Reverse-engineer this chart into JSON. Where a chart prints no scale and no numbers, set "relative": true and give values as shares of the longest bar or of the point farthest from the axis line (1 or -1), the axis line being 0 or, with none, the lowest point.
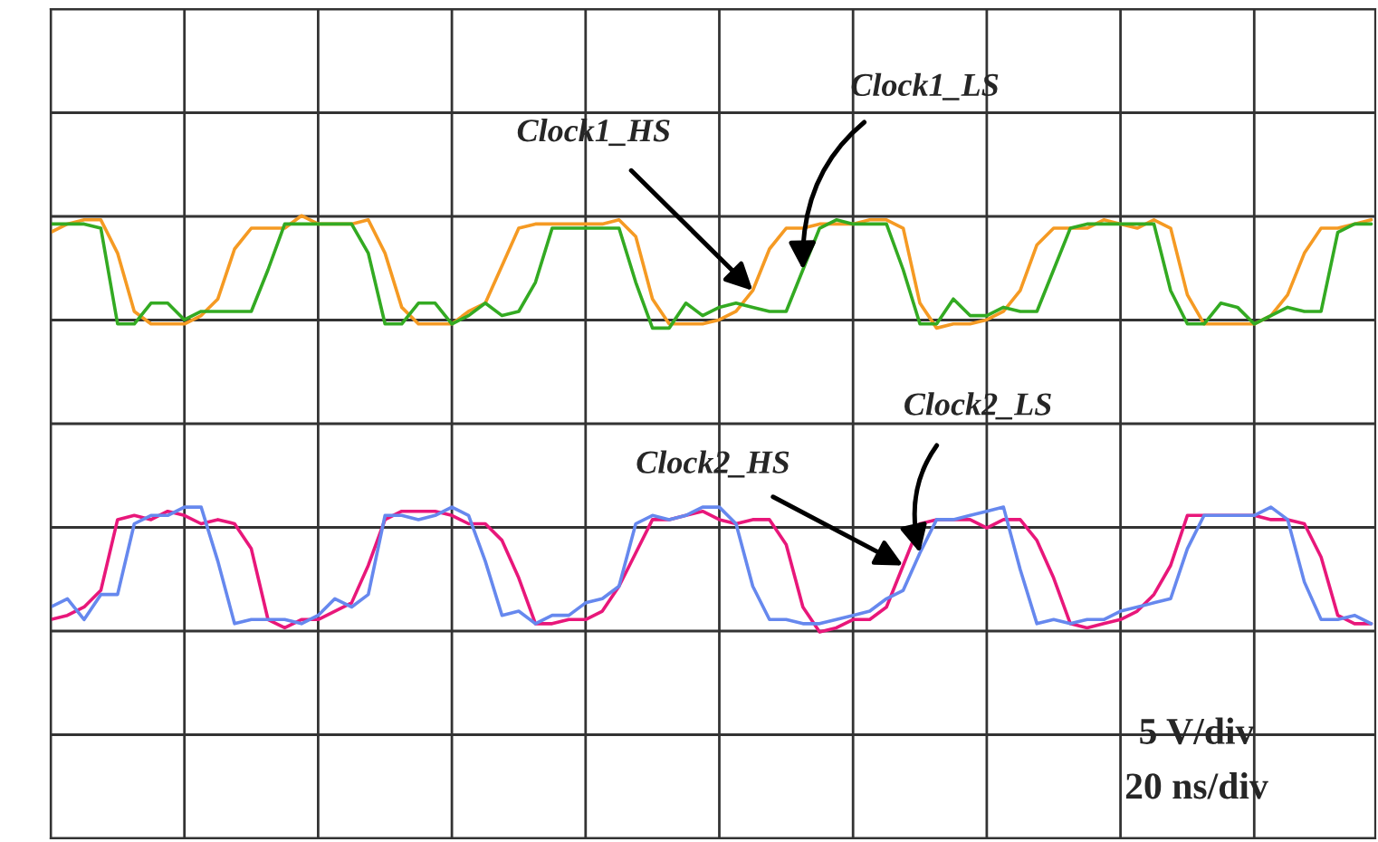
{
  "chart_data": {
    "type": "line",
    "relative": true,
    "grid": true,
    "marker": "none",
    "line_style": "solid",
    "categories": [
      null,
      null,
      null,
      null,
      null,
      null,
      null,
      null,
      null,
      null,
      null,
      null,
      null,
      null,
      null,
      null,
      null,
      null,
      null,
      null,
      null,
      null,
      null,
      null,
      null,
      null,
      null,
      null,
      null,
      null,
      null,
      null,
      null,
      null,
      null,
      null,
      null,
      null,
      null,
      null,
      null,
      null,
      null,
      null,
      null,
      null,
      null,
      null,
      null,
      null,
      null,
      null,
      null,
      null,
      null,
      null,
      null,
      null,
      null,
      null,
      null,
      null,
      null,
      null,
      null,
      null,
      null,
      null,
      null,
      null,
      null,
      null,
      null,
      null,
      null,
      null,
      null,
      null,
      null,
      null
    ],
    "annotations": [
      "5 V/div",
      "20 ns/div"
    ],
    "series": [
      {
        "name": "Clock1_HS",
        "color": "#f59a23",
        "values": [
          0.96,
          0.98,
          0.99,
          0.99,
          0.91,
          0.77,
          0.74,
          0.74,
          0.74,
          0.76,
          0.8,
          0.92,
          0.97,
          0.97,
          0.97,
          1.0,
          0.98,
          0.98,
          0.98,
          0.99,
          0.91,
          0.78,
          0.74,
          0.74,
          0.74,
          0.77,
          0.79,
          0.88,
          0.97,
          0.98,
          0.98,
          0.98,
          0.98,
          0.98,
          0.99,
          0.95,
          0.8,
          0.74,
          0.74,
          0.74,
          0.75,
          0.77,
          0.82,
          0.92,
          0.97,
          0.97,
          0.98,
          0.98,
          0.98,
          0.99,
          0.99,
          0.97,
          0.79,
          0.73,
          0.74,
          0.74,
          0.75,
          0.77,
          0.82,
          0.93,
          0.97,
          0.97,
          0.97,
          0.99,
          0.98,
          0.97,
          0.99,
          0.97,
          0.81,
          0.74,
          0.74,
          0.74,
          0.74,
          0.76,
          0.81,
          0.91,
          0.97,
          0.97,
          0.98,
          0.99
        ]
      },
      {
        "name": "Clock1_LS",
        "color": "#33aa22",
        "values": [
          0.98,
          0.98,
          0.98,
          0.97,
          0.74,
          0.74,
          0.79,
          0.79,
          0.75,
          0.77,
          0.77,
          0.77,
          0.77,
          0.87,
          0.98,
          0.98,
          0.98,
          0.98,
          0.98,
          0.91,
          0.74,
          0.74,
          0.79,
          0.79,
          0.74,
          0.76,
          0.79,
          0.76,
          0.77,
          0.84,
          0.97,
          0.97,
          0.97,
          0.97,
          0.97,
          0.84,
          0.73,
          0.73,
          0.79,
          0.76,
          0.78,
          0.79,
          0.78,
          0.77,
          0.77,
          0.87,
          0.97,
          0.99,
          0.98,
          0.98,
          0.98,
          0.87,
          0.74,
          0.74,
          0.8,
          0.76,
          0.76,
          0.78,
          0.77,
          0.77,
          0.87,
          0.97,
          0.98,
          0.98,
          0.98,
          0.98,
          0.98,
          0.82,
          0.74,
          0.74,
          0.79,
          0.78,
          0.74,
          0.76,
          0.78,
          0.77,
          0.77,
          0.96,
          0.98,
          0.98
        ]
      },
      {
        "name": "Clock2_HS",
        "color": "#e8177a",
        "values": [
          0.03,
          0.04,
          0.06,
          0.1,
          0.27,
          0.28,
          0.27,
          0.29,
          0.28,
          0.26,
          0.27,
          0.26,
          0.2,
          0.03,
          0.01,
          0.03,
          0.03,
          0.05,
          0.07,
          0.16,
          0.27,
          0.29,
          0.29,
          0.29,
          0.28,
          0.26,
          0.26,
          0.22,
          0.13,
          0.02,
          0.02,
          0.03,
          0.03,
          0.05,
          0.11,
          0.19,
          0.27,
          0.27,
          0.28,
          0.29,
          0.27,
          0.26,
          0.27,
          0.27,
          0.21,
          0.06,
          0.0,
          0.01,
          0.03,
          0.03,
          0.06,
          0.16,
          0.26,
          0.27,
          0.27,
          0.27,
          0.25,
          0.27,
          0.27,
          0.22,
          0.13,
          0.02,
          0.01,
          0.02,
          0.03,
          0.05,
          0.09,
          0.16,
          0.28,
          0.28,
          0.28,
          0.28,
          0.28,
          0.27,
          0.27,
          0.26,
          0.18,
          0.04,
          0.02,
          0.02
        ]
      },
      {
        "name": "Clock2_LS",
        "color": "#6688ee",
        "values": [
          0.06,
          0.08,
          0.03,
          0.09,
          0.09,
          0.26,
          0.28,
          0.28,
          0.3,
          0.3,
          0.17,
          0.02,
          0.03,
          0.03,
          0.03,
          0.02,
          0.04,
          0.08,
          0.06,
          0.09,
          0.28,
          0.28,
          0.27,
          0.28,
          0.3,
          0.28,
          0.17,
          0.04,
          0.05,
          0.02,
          0.04,
          0.04,
          0.07,
          0.08,
          0.11,
          0.26,
          0.28,
          0.27,
          0.28,
          0.3,
          0.3,
          0.26,
          0.11,
          0.03,
          0.03,
          0.02,
          0.02,
          0.03,
          0.04,
          0.05,
          0.08,
          0.1,
          0.19,
          0.27,
          0.27,
          0.28,
          0.29,
          0.3,
          0.15,
          0.02,
          0.03,
          0.02,
          0.03,
          0.03,
          0.05,
          0.06,
          0.07,
          0.08,
          0.2,
          0.28,
          0.28,
          0.28,
          0.28,
          0.3,
          0.27,
          0.12,
          0.03,
          0.03,
          0.04,
          0.02
        ]
      }
    ]
  }
}
